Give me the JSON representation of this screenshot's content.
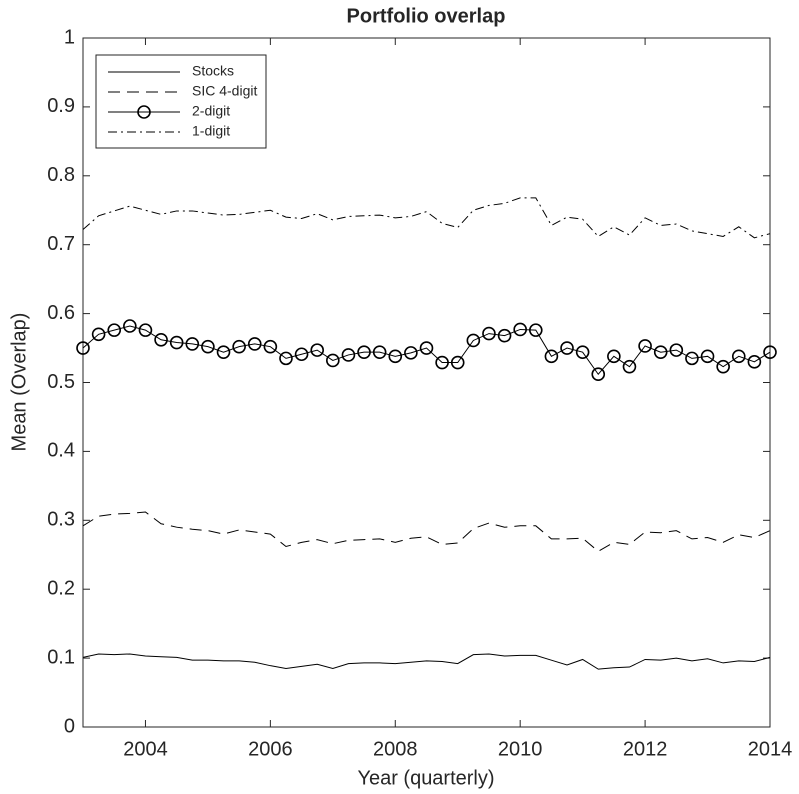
{
  "chart_data": {
    "type": "line",
    "title": "Portfolio overlap",
    "xlabel": "Year (quarterly)",
    "ylabel": "Mean (Overlap)",
    "x": [
      2003,
      2003.25,
      2003.5,
      2003.75,
      2004,
      2004.25,
      2004.5,
      2004.75,
      2005,
      2005.25,
      2005.5,
      2005.75,
      2006,
      2006.25,
      2006.5,
      2006.75,
      2007,
      2007.25,
      2007.5,
      2007.75,
      2008,
      2008.25,
      2008.5,
      2008.75,
      2009,
      2009.25,
      2009.5,
      2009.75,
      2010,
      2010.25,
      2010.5,
      2010.75,
      2011,
      2011.25,
      2011.5,
      2011.75,
      2012,
      2012.25,
      2012.5,
      2012.75,
      2013,
      2013.25,
      2013.5,
      2013.75,
      2014
    ],
    "series": [
      {
        "name": "Stocks",
        "color": "#000000",
        "linestyle": "solid",
        "values": [
          0.101,
          0.106,
          0.105,
          0.106,
          0.103,
          0.102,
          0.101,
          0.097,
          0.097,
          0.096,
          0.096,
          0.094,
          0.089,
          0.085,
          0.088,
          0.091,
          0.085,
          0.092,
          0.093,
          0.093,
          0.092,
          0.094,
          0.096,
          0.095,
          0.092,
          0.105,
          0.106,
          0.103,
          0.104,
          0.104,
          0.097,
          0.09,
          0.098,
          0.084,
          0.086,
          0.087,
          0.098,
          0.097,
          0.1,
          0.096,
          0.099,
          0.093,
          0.096,
          0.095,
          0.101
        ]
      },
      {
        "name": "SIC 4-digit",
        "color": "#000000",
        "linestyle": "dashed",
        "values": [
          0.292,
          0.306,
          0.309,
          0.31,
          0.312,
          0.295,
          0.29,
          0.287,
          0.285,
          0.28,
          0.286,
          0.283,
          0.28,
          0.262,
          0.268,
          0.272,
          0.266,
          0.271,
          0.272,
          0.273,
          0.268,
          0.274,
          0.276,
          0.265,
          0.267,
          0.288,
          0.296,
          0.29,
          0.292,
          0.292,
          0.273,
          0.273,
          0.274,
          0.255,
          0.268,
          0.265,
          0.283,
          0.282,
          0.285,
          0.273,
          0.275,
          0.268,
          0.279,
          0.275,
          0.285
        ]
      },
      {
        "name": "2-digit",
        "color": "#000000",
        "linestyle": "solid",
        "marker": "o",
        "values": [
          0.55,
          0.57,
          0.576,
          0.582,
          0.576,
          0.562,
          0.558,
          0.556,
          0.552,
          0.544,
          0.552,
          0.556,
          0.552,
          0.535,
          0.541,
          0.547,
          0.532,
          0.54,
          0.544,
          0.544,
          0.538,
          0.543,
          0.55,
          0.529,
          0.529,
          0.561,
          0.571,
          0.568,
          0.577,
          0.576,
          0.538,
          0.55,
          0.544,
          0.512,
          0.538,
          0.523,
          0.553,
          0.544,
          0.547,
          0.535,
          0.538,
          0.523,
          0.538,
          0.53,
          0.544
        ]
      },
      {
        "name": "1-digit",
        "color": "#000000",
        "linestyle": "dashdot",
        "values": [
          0.722,
          0.742,
          0.749,
          0.756,
          0.75,
          0.744,
          0.749,
          0.749,
          0.746,
          0.743,
          0.744,
          0.747,
          0.75,
          0.74,
          0.738,
          0.745,
          0.736,
          0.741,
          0.742,
          0.743,
          0.739,
          0.741,
          0.748,
          0.731,
          0.725,
          0.75,
          0.757,
          0.76,
          0.768,
          0.768,
          0.728,
          0.74,
          0.737,
          0.712,
          0.726,
          0.714,
          0.739,
          0.728,
          0.73,
          0.72,
          0.716,
          0.712,
          0.726,
          0.71,
          0.716
        ]
      }
    ],
    "xlim": [
      2003,
      2014
    ],
    "xticks": [
      2004,
      2006,
      2008,
      2010,
      2012,
      2014
    ],
    "ylim": [
      0,
      1
    ],
    "yticks": [
      0,
      0.1,
      0.2,
      0.3,
      0.4,
      0.5,
      0.6,
      0.7,
      0.8,
      0.9,
      1
    ],
    "grid": false,
    "legend": "upper left"
  }
}
